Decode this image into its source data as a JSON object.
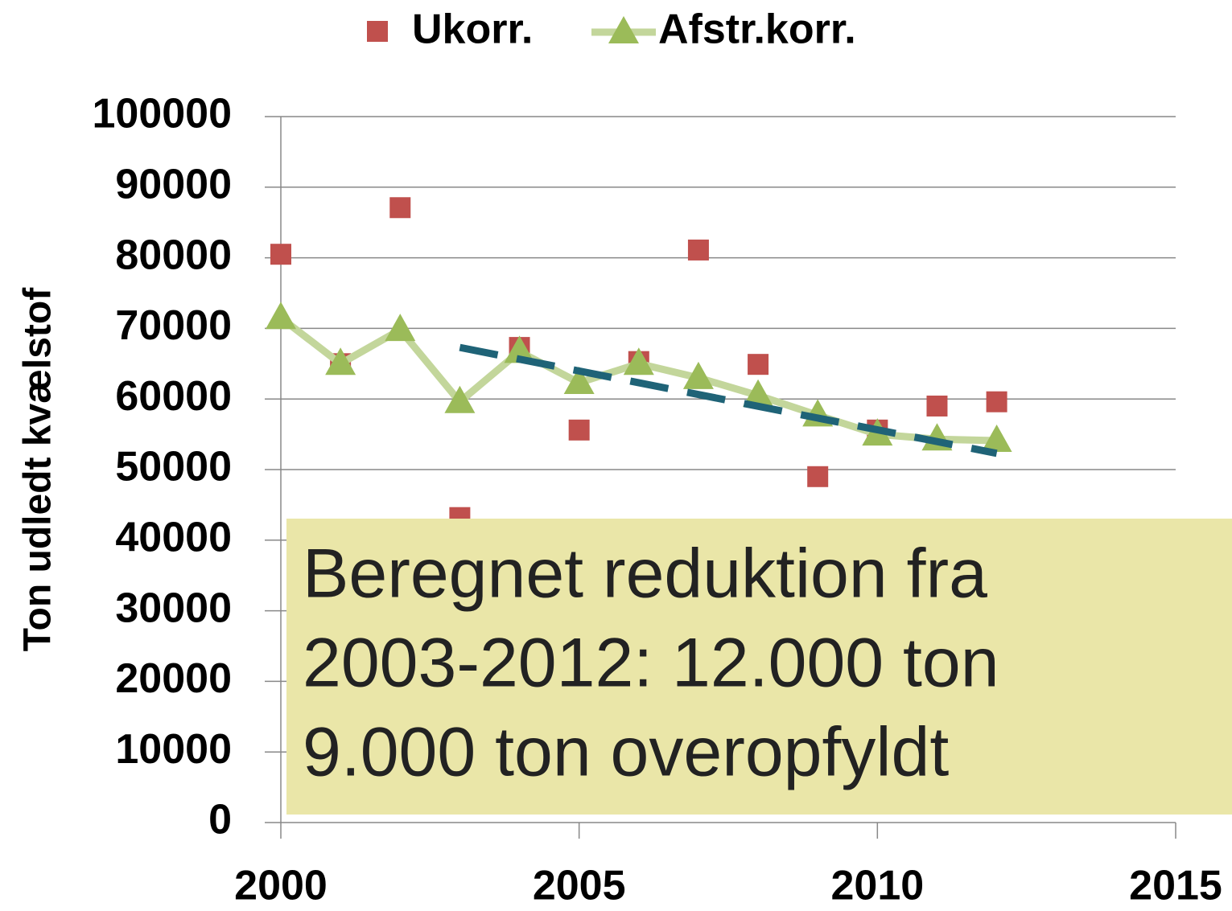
{
  "chart_data": {
    "type": "scatter-line",
    "y_label": "Ton udledt kvælstof",
    "x": [
      2000,
      2001,
      2002,
      2003,
      2004,
      2005,
      2006,
      2007,
      2008,
      2009,
      2010,
      2011,
      2012
    ],
    "series": [
      {
        "name": "Ukorr.",
        "color": "#c0504d",
        "marker": "square",
        "line": false,
        "values": [
          80500,
          65000,
          87100,
          43200,
          67300,
          55600,
          65300,
          81100,
          64900,
          49000,
          55600,
          59000,
          59600
        ]
      },
      {
        "name": "Afstr.korr.",
        "color": "#9bbb59",
        "line_color": "#c3d69b",
        "marker": "triangle",
        "line": true,
        "values": [
          71500,
          65000,
          69800,
          59600,
          66700,
          62300,
          65000,
          63000,
          60500,
          57700,
          55000,
          54300,
          54100
        ]
      }
    ],
    "trendline": {
      "x": [
        2003,
        2012
      ],
      "values": [
        67300,
        52300
      ],
      "color": "#1f6377"
    },
    "xlim": [
      2000,
      2015
    ],
    "xticks": [
      2000,
      2005,
      2010,
      2015
    ],
    "ylim": [
      0,
      100000
    ],
    "yticks": [
      0,
      10000,
      20000,
      30000,
      40000,
      50000,
      60000,
      70000,
      80000,
      90000,
      100000
    ],
    "grid": true,
    "legend": "top",
    "annotation": [
      "Beregnet reduktion fra",
      "2003-2012: 12.000 ton",
      "9.000 ton overopfyldt"
    ]
  }
}
